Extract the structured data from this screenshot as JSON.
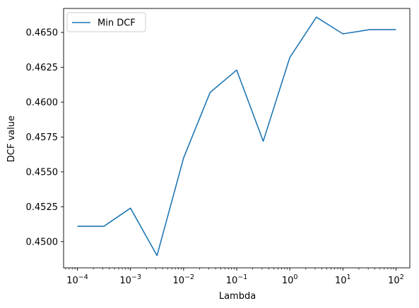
{
  "chart_data": {
    "type": "line",
    "title": "",
    "xlabel": "Lambda",
    "ylabel": "DCF value",
    "xscale": "log",
    "xlim": [
      5.5e-05,
      182
    ],
    "ylim": [
      0.44812,
      0.46672
    ],
    "grid": false,
    "legend_position": "top-left",
    "x_ticks": [
      {
        "value": 0.0001,
        "base": "10",
        "exp": "−4"
      },
      {
        "value": 0.001,
        "base": "10",
        "exp": "−3"
      },
      {
        "value": 0.01,
        "base": "10",
        "exp": "−2"
      },
      {
        "value": 0.1,
        "base": "10",
        "exp": "−1"
      },
      {
        "value": 1,
        "base": "10",
        "exp": "0"
      },
      {
        "value": 10,
        "base": "10",
        "exp": "1"
      },
      {
        "value": 100,
        "base": "10",
        "exp": "2"
      }
    ],
    "y_ticks": [
      {
        "value": 0.45,
        "label": "0.4500"
      },
      {
        "value": 0.4525,
        "label": "0.4525"
      },
      {
        "value": 0.455,
        "label": "0.4550"
      },
      {
        "value": 0.4575,
        "label": "0.4575"
      },
      {
        "value": 0.46,
        "label": "0.4600"
      },
      {
        "value": 0.4625,
        "label": "0.4625"
      },
      {
        "value": 0.465,
        "label": "0.4650"
      }
    ],
    "series": [
      {
        "name": "Min DCF",
        "color": "#1f77b4",
        "x": [
          0.0001,
          0.000316,
          0.001,
          0.00316,
          0.01,
          0.0316,
          0.1,
          0.316,
          1,
          3.16,
          10,
          31.6,
          100
        ],
        "y": [
          0.4511,
          0.4511,
          0.4524,
          0.449,
          0.456,
          0.4607,
          0.4623,
          0.4572,
          0.4632,
          0.4661,
          0.4649,
          0.4652,
          0.4652
        ]
      }
    ]
  }
}
